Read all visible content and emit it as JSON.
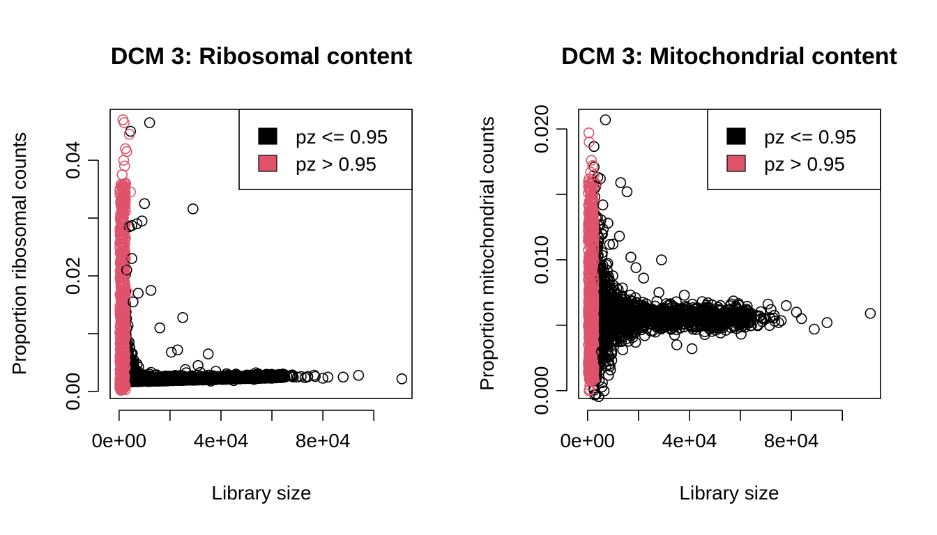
{
  "colors": {
    "black": "#000000",
    "red": "#DF536B"
  },
  "chart_data": [
    {
      "type": "scatter",
      "title": "DCM 3: Ribosomal content",
      "xlabel": "Library size",
      "ylabel": "Proportion ribosomal counts",
      "xlim": [
        -3500,
        115000
      ],
      "ylim": [
        -0.0012,
        0.0488
      ],
      "xticks": [
        0,
        20000,
        40000,
        60000,
        80000,
        100000
      ],
      "xtick_labels": [
        "0e+00",
        "",
        "4e+04",
        "",
        "8e+04",
        ""
      ],
      "yticks": [
        0,
        0.01,
        0.02,
        0.03,
        0.04
      ],
      "ytick_labels": [
        "0.00",
        "",
        "0.02",
        "",
        "0.04"
      ],
      "legend": {
        "position": "top-right",
        "entries": [
          {
            "label": "pz <= 0.95",
            "color": "#000000"
          },
          {
            "label": "pz > 0.95",
            "color": "#DF536B"
          }
        ]
      },
      "series": [
        {
          "name": "pz <= 0.95",
          "color": "#000000",
          "points": [
            [
              12000,
              0.0465
            ],
            [
              4500,
              0.045
            ],
            [
              10000,
              0.0325
            ],
            [
              29000,
              0.0316
            ],
            [
              9000,
              0.0295
            ],
            [
              7000,
              0.029
            ],
            [
              5000,
              0.0287
            ],
            [
              4000,
              0.0285
            ],
            [
              5000,
              0.023
            ],
            [
              3000,
              0.021
            ],
            [
              12500,
              0.0175
            ],
            [
              7500,
              0.017
            ],
            [
              5500,
              0.0155
            ],
            [
              16000,
              0.011
            ],
            [
              25000,
              0.0128
            ],
            [
              20500,
              0.0068
            ],
            [
              23000,
              0.0072
            ],
            [
              35000,
              0.0065
            ],
            [
              111000,
              0.0022
            ],
            [
              94000,
              0.0028
            ],
            [
              88000,
              0.0025
            ],
            [
              82000,
              0.0025
            ],
            [
              77000,
              0.0026
            ],
            [
              70000,
              0.0025
            ],
            [
              64000,
              0.0024
            ],
            [
              55000,
              0.0026
            ],
            [
              47000,
              0.0025
            ],
            [
              40000,
              0.0023
            ],
            [
              60000,
              0.0023
            ],
            [
              73000,
              0.0024
            ],
            [
              50000,
              0.0028
            ],
            [
              43000,
              0.0029
            ],
            [
              38000,
              0.0035
            ],
            [
              31000,
              0.0045
            ],
            [
              26000,
              0.0038
            ],
            [
              45000,
              0.0019
            ],
            [
              53000,
              0.0021
            ],
            [
              67000,
              0.0027
            ],
            [
              80000,
              0.0023
            ],
            [
              36000,
              0.0018
            ],
            [
              28000,
              0.0024
            ],
            [
              22000,
              0.0028
            ]
          ]
        },
        {
          "name": "pz > 0.95",
          "color": "#DF536B",
          "points": [
            [
              1500,
              0.047
            ],
            [
              2000,
              0.0465
            ],
            [
              4000,
              0.0445
            ],
            [
              2500,
              0.042
            ],
            [
              3000,
              0.0415
            ],
            [
              1800,
              0.04
            ],
            [
              2200,
              0.039
            ],
            [
              1200,
              0.0375
            ],
            [
              2600,
              0.036
            ],
            [
              1500,
              0.035
            ],
            [
              4500,
              0.0345
            ],
            [
              1000,
              0.0335
            ],
            [
              2000,
              0.033
            ],
            [
              1300,
              0.031
            ],
            [
              1700,
              0.03
            ],
            [
              1000,
              0.028
            ],
            [
              2000,
              0.027
            ],
            [
              1200,
              0.026
            ],
            [
              1500,
              0.025
            ],
            [
              800,
              0.024
            ],
            [
              1400,
              0.023
            ],
            [
              1100,
              0.021
            ],
            [
              1600,
              0.019
            ],
            [
              900,
              0.018
            ],
            [
              1300,
              0.016
            ],
            [
              1000,
              0.015
            ],
            [
              1200,
              0.013
            ],
            [
              700,
              0.012
            ],
            [
              1500,
              0.011
            ],
            [
              1000,
              0.009
            ],
            [
              1300,
              0.008
            ],
            [
              900,
              0.007
            ],
            [
              1600,
              0.006
            ],
            [
              800,
              0.005
            ],
            [
              1200,
              0.004
            ],
            [
              1000,
              0.003
            ],
            [
              1500,
              0.002
            ],
            [
              900,
              0.001
            ],
            [
              1200,
              0.0005
            ],
            [
              700,
              0.0002
            ],
            [
              3500,
              0.017
            ]
          ]
        }
      ],
      "clouds": [
        {
          "color": "#000000",
          "count": 1300,
          "kind": "ribo"
        },
        {
          "color": "#DF536B",
          "count": 450,
          "kind": "redstrip",
          "ymin": 0.0003,
          "ymax": 0.036
        }
      ]
    },
    {
      "type": "scatter",
      "title": "DCM 3: Mitochondrial content",
      "xlabel": "Library size",
      "ylabel": "Proportion mitochondrial counts",
      "xlim": [
        -3500,
        115000
      ],
      "ylim": [
        -0.0006,
        0.0215
      ],
      "xticks": [
        0,
        20000,
        40000,
        60000,
        80000,
        100000
      ],
      "xtick_labels": [
        "0e+00",
        "",
        "4e+04",
        "",
        "8e+04",
        ""
      ],
      "yticks": [
        0,
        0.005,
        0.01,
        0.015,
        0.02
      ],
      "ytick_labels": [
        "0.000",
        "",
        "0.010",
        "",
        "0.020"
      ],
      "legend": {
        "position": "top-right",
        "entries": [
          {
            "label": "pz <= 0.95",
            "color": "#000000"
          },
          {
            "label": "pz > 0.95",
            "color": "#DF536B"
          }
        ]
      },
      "series": [
        {
          "name": "pz <= 0.95",
          "color": "#000000",
          "points": [
            [
              7000,
              0.0207
            ],
            [
              13000,
              0.0159
            ],
            [
              15500,
              0.0152
            ],
            [
              4000,
              0.0163
            ],
            [
              5000,
              0.0162
            ],
            [
              6000,
              0.0142
            ],
            [
              12500,
              0.0118
            ],
            [
              17000,
              0.0102
            ],
            [
              29000,
              0.01
            ],
            [
              19000,
              0.0094
            ],
            [
              111000,
              0.0059
            ],
            [
              94000,
              0.0052
            ],
            [
              89000,
              0.0047
            ],
            [
              82000,
              0.006
            ],
            [
              78000,
              0.0065
            ],
            [
              75000,
              0.0052
            ],
            [
              72000,
              0.0062
            ],
            [
              70000,
              0.0055
            ],
            [
              64000,
              0.0058
            ],
            [
              53000,
              0.0048
            ],
            [
              46000,
              0.0045
            ],
            [
              41000,
              0.0032
            ],
            [
              35000,
              0.0035
            ],
            [
              28000,
              0.0075
            ],
            [
              38000,
              0.0073
            ],
            [
              45000,
              0.0068
            ],
            [
              22000,
              0.0086
            ],
            [
              10000,
              0.0112
            ],
            [
              8000,
              0.0128
            ],
            [
              5500,
              0.003
            ],
            [
              6000,
              0.0025
            ],
            [
              84000,
              0.0055
            ],
            [
              60000,
              0.006
            ]
          ]
        },
        {
          "name": "pz > 0.95",
          "color": "#DF536B",
          "points": [
            [
              500,
              0.0197
            ],
            [
              600,
              0.019
            ],
            [
              1500,
              0.0176
            ],
            [
              2000,
              0.0172
            ],
            [
              1200,
              0.0167
            ],
            [
              2500,
              0.0165
            ],
            [
              3500,
              0.0158
            ],
            [
              1000,
              0.0155
            ],
            [
              800,
              0.0145
            ],
            [
              1800,
              0.014
            ],
            [
              1300,
              0.0135
            ],
            [
              900,
              0.0128
            ],
            [
              1600,
              0.012
            ],
            [
              1100,
              0.0112
            ],
            [
              1400,
              0.0105
            ],
            [
              700,
              0.0098
            ],
            [
              1200,
              0.009
            ],
            [
              900,
              0.008
            ],
            [
              1500,
              0.007
            ],
            [
              1000,
              0.006
            ],
            [
              1300,
              0.005
            ],
            [
              800,
              0.004
            ],
            [
              1200,
              0.003
            ],
            [
              1000,
              0.0023
            ],
            [
              700,
              0.0016
            ],
            [
              1100,
              0.001
            ],
            [
              900,
              0.0004
            ],
            [
              600,
              0.0
            ],
            [
              800,
              0.0001
            ]
          ]
        }
      ],
      "clouds": [
        {
          "color": "#000000",
          "count": 1500,
          "kind": "mito"
        },
        {
          "color": "#DF536B",
          "count": 450,
          "kind": "redstrip",
          "ymin": 0.0008,
          "ymax": 0.0162
        }
      ]
    }
  ]
}
